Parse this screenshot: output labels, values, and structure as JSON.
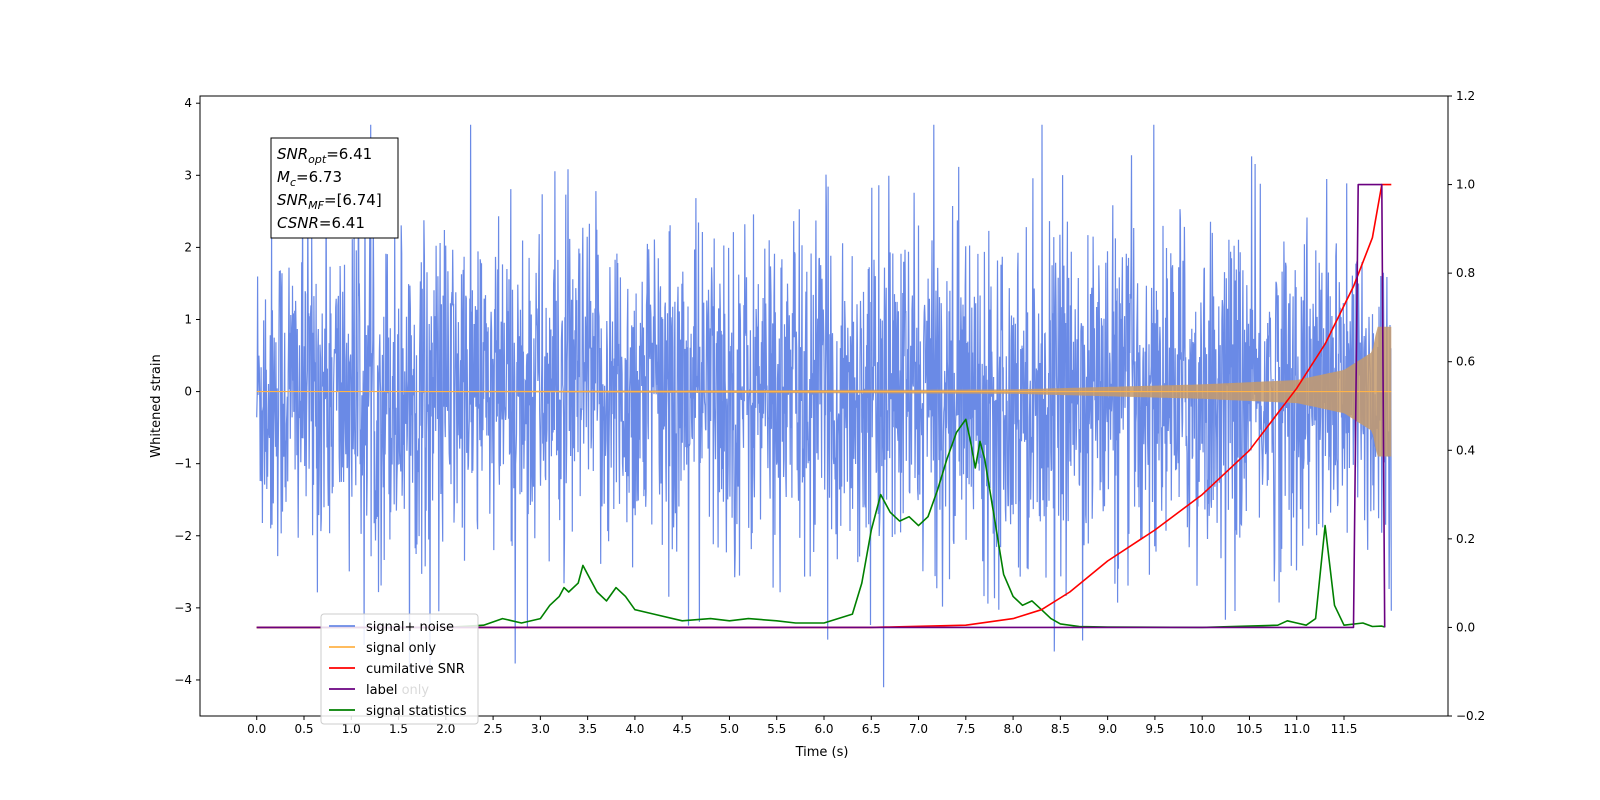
{
  "chart_data": {
    "type": "line",
    "xlabel": "Time (s)",
    "ylabel": "Whitened strain",
    "xlim": [
      -0.6,
      12.6
    ],
    "ylim": [
      -4.5,
      4.1
    ],
    "y2lim": [
      -0.2,
      1.2
    ],
    "x_ticks": [
      "0.0",
      "0.5",
      "1.0",
      "1.5",
      "2.0",
      "2.5",
      "3.0",
      "3.5",
      "4.0",
      "4.5",
      "5.0",
      "5.5",
      "6.0",
      "6.5",
      "7.0",
      "7.5",
      "8.0",
      "8.5",
      "9.0",
      "9.5",
      "10.0",
      "10.5",
      "11.0",
      "11.5"
    ],
    "y_ticks": [
      "4",
      "3",
      "2",
      "1",
      "0",
      "−1",
      "−2",
      "−3",
      "−4"
    ],
    "y2_ticks": [
      "1.2",
      "1.0",
      "0.8",
      "0.6",
      "0.4",
      "0.2",
      "0.0",
      "−0.2"
    ],
    "annotation": [
      {
        "base": "SNR",
        "sub": "opt",
        "value": "=6.41"
      },
      {
        "base": "M",
        "sub": "c",
        "value": "=6.73"
      },
      {
        "base": "SNR",
        "sub": "MF",
        "value": "=[6.74]"
      },
      {
        "base": "CSNR",
        "sub": "",
        "value": "=6.41"
      }
    ],
    "legend_position": "lower-left",
    "series": [
      {
        "name": "signal+ noise",
        "color": "#6a8ae6",
        "axis": "left",
        "kind": "noise",
        "x_range": [
          0.0,
          12.0
        ],
        "envelope_upper": 2.5,
        "envelope_lower": -2.6,
        "max": 3.7,
        "min": -4.1
      },
      {
        "name": "signal only",
        "color": "#ffb347",
        "axis": "left",
        "kind": "chirp",
        "x_range": [
          0.0,
          12.0
        ],
        "amplitude_at": [
          [
            8.0,
            0.03
          ],
          [
            10.0,
            0.1
          ],
          [
            11.0,
            0.16
          ],
          [
            11.5,
            0.3
          ],
          [
            11.8,
            0.55
          ],
          [
            11.85,
            0.9
          ]
        ]
      },
      {
        "name": "cumilative SNR",
        "color": "#ff0000",
        "axis": "right",
        "x": [
          0,
          6.5,
          7.5,
          8.0,
          8.3,
          8.6,
          9.0,
          9.5,
          10.0,
          10.5,
          11.0,
          11.3,
          11.6,
          11.8,
          11.9,
          12.0
        ],
        "y": [
          0,
          0.0,
          0.005,
          0.02,
          0.04,
          0.08,
          0.15,
          0.22,
          0.3,
          0.4,
          0.54,
          0.64,
          0.77,
          0.88,
          1.0,
          1.0
        ]
      },
      {
        "name": "label",
        "color": "#6a0080",
        "axis": "right",
        "x": [
          0,
          11.6,
          11.65,
          11.9,
          11.93
        ],
        "y": [
          0,
          0,
          1,
          1,
          0
        ]
      },
      {
        "name": "label only",
        "color": "#6a0080",
        "axis": "right",
        "hidden": true,
        "x": [],
        "y": []
      },
      {
        "name": "signal statistics",
        "color": "#008000",
        "axis": "right",
        "x": [
          0,
          0.5,
          1.0,
          1.5,
          2.0,
          2.4,
          2.6,
          2.8,
          3.0,
          3.1,
          3.2,
          3.25,
          3.3,
          3.4,
          3.45,
          3.5,
          3.6,
          3.7,
          3.8,
          3.9,
          4.0,
          4.2,
          4.5,
          4.8,
          5.0,
          5.2,
          5.5,
          5.7,
          6.0,
          6.3,
          6.4,
          6.5,
          6.6,
          6.7,
          6.8,
          6.9,
          7.0,
          7.1,
          7.2,
          7.3,
          7.4,
          7.5,
          7.55,
          7.6,
          7.65,
          7.7,
          7.8,
          7.9,
          8.0,
          8.1,
          8.2,
          8.3,
          8.4,
          8.5,
          8.7,
          9.0,
          10.0,
          10.8,
          10.9,
          11.0,
          11.1,
          11.2,
          11.3,
          11.4,
          11.5,
          11.7,
          11.8,
          11.9,
          11.93
        ],
        "y": [
          0.0,
          0.0,
          0.0,
          0.0,
          0.0,
          0.005,
          0.02,
          0.01,
          0.02,
          0.05,
          0.07,
          0.09,
          0.08,
          0.1,
          0.14,
          0.12,
          0.08,
          0.06,
          0.09,
          0.07,
          0.04,
          0.03,
          0.015,
          0.02,
          0.015,
          0.02,
          0.015,
          0.01,
          0.01,
          0.03,
          0.1,
          0.22,
          0.3,
          0.26,
          0.24,
          0.25,
          0.23,
          0.25,
          0.31,
          0.38,
          0.44,
          0.47,
          0.42,
          0.36,
          0.42,
          0.38,
          0.25,
          0.12,
          0.07,
          0.05,
          0.06,
          0.04,
          0.02,
          0.008,
          0.002,
          0.001,
          0.0,
          0.005,
          0.015,
          0.01,
          0.005,
          0.02,
          0.23,
          0.05,
          0.005,
          0.01,
          0.002,
          0.003,
          0.001
        ]
      }
    ]
  }
}
